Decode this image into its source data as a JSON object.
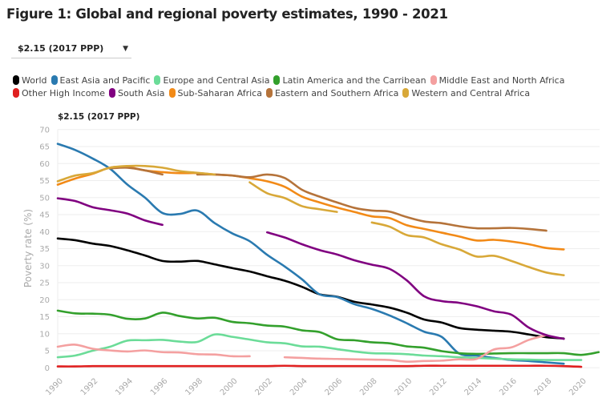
{
  "title": "Figure 1: Global and regional poverty estimates, 1990 - 2021",
  "dropdown": {
    "selected": "$2.15 (2017 PPP)",
    "icon": "caret-down-icon"
  },
  "chart_data": {
    "type": "line",
    "subtitle": "$2.15 (2017 PPP)",
    "ylabel": "Poverty rate (%)",
    "xlabel": "",
    "xlim": [
      1990,
      2021
    ],
    "ylim": [
      0,
      70
    ],
    "yticks": [
      0,
      5,
      10,
      15,
      20,
      25,
      30,
      35,
      40,
      45,
      50,
      55,
      60,
      65,
      70
    ],
    "xticks": [
      1990,
      1992,
      1994,
      1996,
      1998,
      2000,
      2002,
      2004,
      2006,
      2008,
      2010,
      2012,
      2014,
      2016,
      2018,
      2020
    ],
    "grid": "horizontal",
    "legend_placement": "top",
    "x": [
      1990,
      1991,
      1992,
      1993,
      1994,
      1995,
      1996,
      1997,
      1998,
      1999,
      2000,
      2001,
      2002,
      2003,
      2004,
      2005,
      2006,
      2007,
      2008,
      2009,
      2010,
      2011,
      2012,
      2013,
      2014,
      2015,
      2016,
      2017,
      2018,
      2019,
      2020,
      2021
    ],
    "series": [
      {
        "name": "World",
        "color": "#000000",
        "values": [
          38,
          37.5,
          36.5,
          35.8,
          34.5,
          33,
          31.4,
          31.2,
          31.4,
          30.4,
          29.3,
          28.3,
          26.9,
          25.6,
          23.8,
          21.6,
          20.9,
          19.4,
          18.6,
          17.7,
          16.2,
          14.2,
          13.3,
          11.7,
          11.2,
          10.9,
          10.6,
          9.8,
          9,
          8.6,
          null,
          null
        ]
      },
      {
        "name": "East Asia and Pacific",
        "color": "#2a7ab0",
        "values": [
          65.8,
          64,
          61.5,
          58.5,
          53.8,
          50,
          45.5,
          45.2,
          46.2,
          42.5,
          39.5,
          37.2,
          33.2,
          29.8,
          26,
          21.6,
          20.8,
          18.7,
          17.3,
          15.4,
          13.1,
          10.6,
          9.1,
          4.2,
          3.6,
          2.9,
          2.3,
          2,
          1.6,
          1.2,
          null,
          null
        ]
      },
      {
        "name": "Europe and Central Asia",
        "color": "#6bdc98",
        "values": [
          3.1,
          3.6,
          5,
          6.2,
          8,
          8.1,
          8.2,
          7.7,
          7.6,
          9.8,
          9.1,
          8.3,
          7.5,
          7.2,
          6.3,
          6.2,
          5.5,
          4.8,
          4.3,
          4.2,
          4,
          3.6,
          3.4,
          3.1,
          2.9,
          2.7,
          2.5,
          2.4,
          2.3,
          2.3,
          2.3,
          null
        ]
      },
      {
        "name": "Latin America and the Carribean",
        "color": "#33a02c",
        "values": [
          16.8,
          16,
          15.9,
          15.6,
          14.4,
          14.5,
          16.2,
          15.2,
          14.5,
          14.7,
          13.5,
          13.1,
          12.4,
          12.1,
          11,
          10.5,
          8.4,
          8.1,
          7.5,
          7.2,
          6.3,
          5.9,
          4.9,
          4.3,
          4.1,
          4.2,
          4.3,
          4.3,
          4.3,
          4.3,
          3.8,
          4.6
        ]
      },
      {
        "name": "Middle East and North Africa",
        "color": "#f4a0a0",
        "values": [
          6.2,
          6.8,
          5.6,
          5.1,
          4.8,
          5.1,
          4.6,
          4.5,
          4,
          3.9,
          3.4,
          3.4,
          null,
          3.1,
          2.9,
          2.7,
          2.6,
          2.5,
          2.4,
          2.3,
          1.8,
          2,
          2.1,
          2.5,
          2.6,
          5.4,
          6,
          8.2,
          9.6,
          null,
          null,
          null
        ]
      },
      {
        "name": "Other High Income",
        "color": "#e02020",
        "values": [
          0.4,
          0.4,
          0.5,
          0.5,
          0.5,
          0.5,
          0.5,
          0.5,
          0.5,
          0.5,
          0.5,
          0.5,
          0.5,
          0.6,
          0.5,
          0.5,
          0.5,
          0.5,
          0.5,
          0.5,
          0.5,
          0.6,
          0.6,
          0.6,
          0.6,
          0.6,
          0.6,
          0.6,
          0.6,
          0.5,
          0.3,
          null
        ]
      },
      {
        "name": "South Asia",
        "color": "#800080",
        "values": [
          49.8,
          49,
          47.2,
          46.3,
          45.3,
          43.3,
          42,
          null,
          null,
          null,
          null,
          null,
          39.8,
          38.3,
          36.3,
          34.6,
          33.3,
          31.6,
          30.3,
          29.1,
          25.7,
          21,
          19.6,
          19.1,
          18.1,
          16.6,
          15.6,
          11.8,
          9.6,
          8.5,
          null,
          null
        ]
      },
      {
        "name": "Sub-Saharan Africa",
        "color": "#f28a17",
        "values": [
          53.8,
          55.6,
          57,
          58.8,
          59,
          58,
          57.5,
          57.2,
          57.2,
          56.8,
          56.5,
          55.7,
          54.8,
          53.2,
          50.3,
          48.6,
          47.1,
          45.8,
          44.5,
          44,
          41.9,
          40.8,
          39.7,
          38.6,
          37.4,
          37.6,
          37.1,
          36.3,
          35.2,
          34.8,
          null,
          null
        ]
      },
      {
        "name": "Eastern and Southern Africa",
        "color": "#b5733a",
        "values": [
          null,
          null,
          null,
          58.6,
          58.8,
          58,
          56.8,
          null,
          56.8,
          56.8,
          56.5,
          56,
          56.8,
          55.8,
          52.3,
          50.3,
          48.6,
          47,
          46.2,
          45.9,
          44.3,
          43,
          42.5,
          41.6,
          41,
          41,
          41.1,
          40.8,
          40.3,
          null,
          null,
          null
        ]
      },
      {
        "name": "Western and Central Africa",
        "color": "#d8a838",
        "values": [
          54.8,
          56.5,
          57.2,
          58.8,
          59.3,
          59.3,
          58.8,
          57.8,
          57.3,
          56.8,
          null,
          54.5,
          51.3,
          49.9,
          47.5,
          46.6,
          45.8,
          null,
          42.7,
          41.5,
          39,
          38.3,
          36.3,
          34.8,
          32.7,
          32.9,
          31.4,
          29.6,
          28,
          27.2,
          null,
          null
        ]
      }
    ]
  }
}
